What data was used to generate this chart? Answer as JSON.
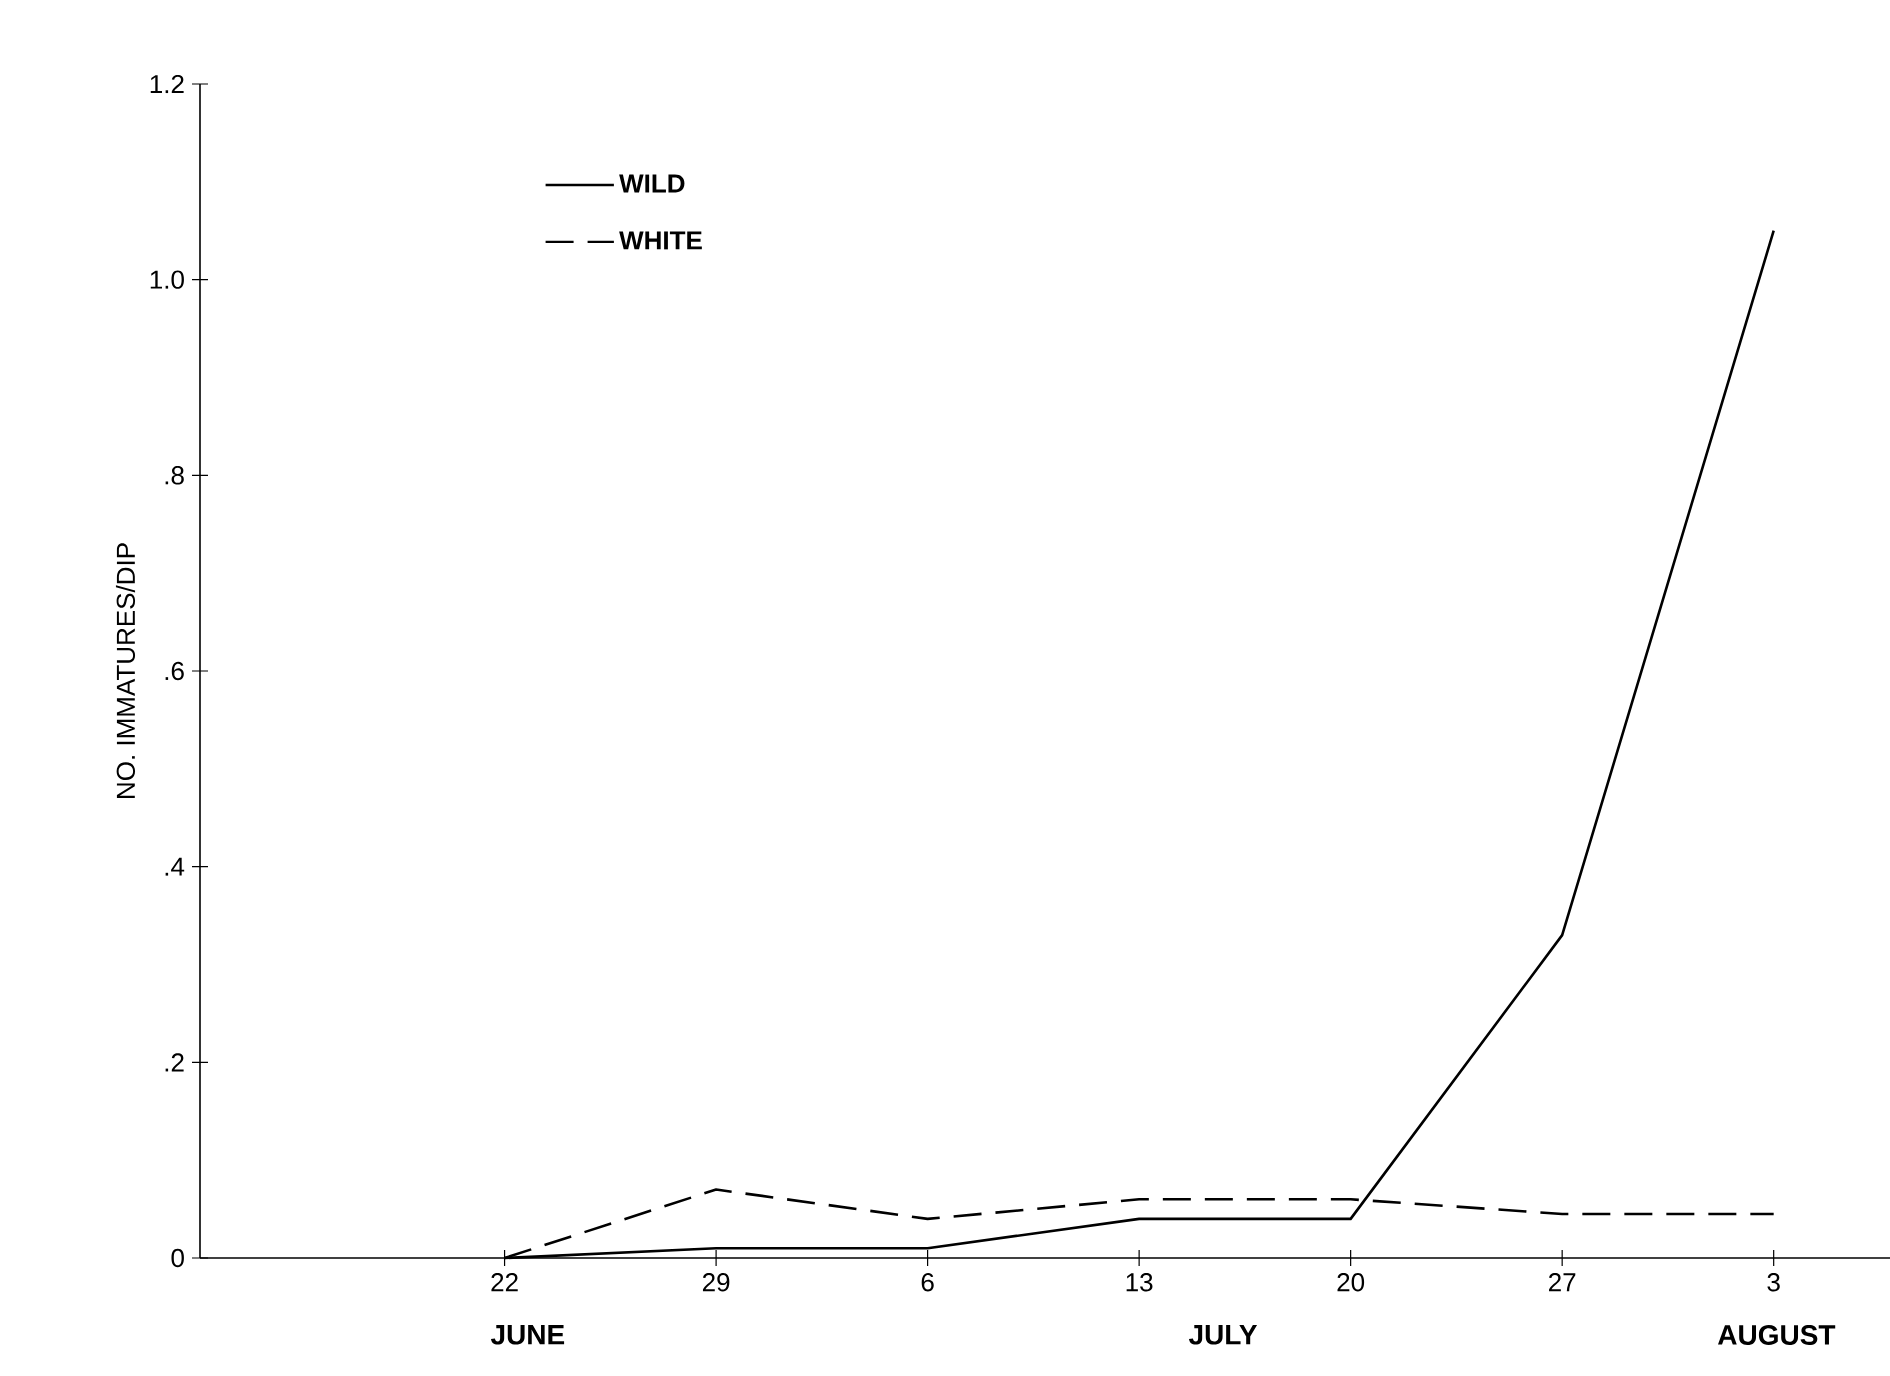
{
  "chart_data": {
    "type": "line",
    "ylabel": "NO. IMMATURES/DIP",
    "categories": [
      "22",
      "29",
      "6",
      "13",
      "20",
      "27",
      "3"
    ],
    "series": [
      {
        "name": "WILD",
        "color": "#000000",
        "line_style": "solid",
        "values": [
          0,
          0.01,
          0.01,
          0.04,
          0.04,
          0.33,
          1.05
        ]
      },
      {
        "name": "WHITE",
        "color": "#000000",
        "line_style": "dashed",
        "values": [
          0,
          0.07,
          0.04,
          0.06,
          0.06,
          0.045,
          0.045
        ]
      }
    ],
    "ylim": [
      0,
      1.2
    ],
    "yticks": [
      0,
      {
        "value": 0.2,
        "label": ".2"
      },
      {
        "value": 0.4,
        "label": ".4"
      },
      {
        "value": 0.6,
        "label": ".6"
      },
      {
        "value": 0.8,
        "label": ".8"
      },
      {
        "value": 1.0,
        "label": "1.0"
      },
      {
        "value": 1.2,
        "label": "1.2"
      }
    ],
    "annotations": [
      "JUNE",
      "JULY",
      "AUGUST"
    ],
    "legend": "top left",
    "marker": "none",
    "grid": false
  }
}
